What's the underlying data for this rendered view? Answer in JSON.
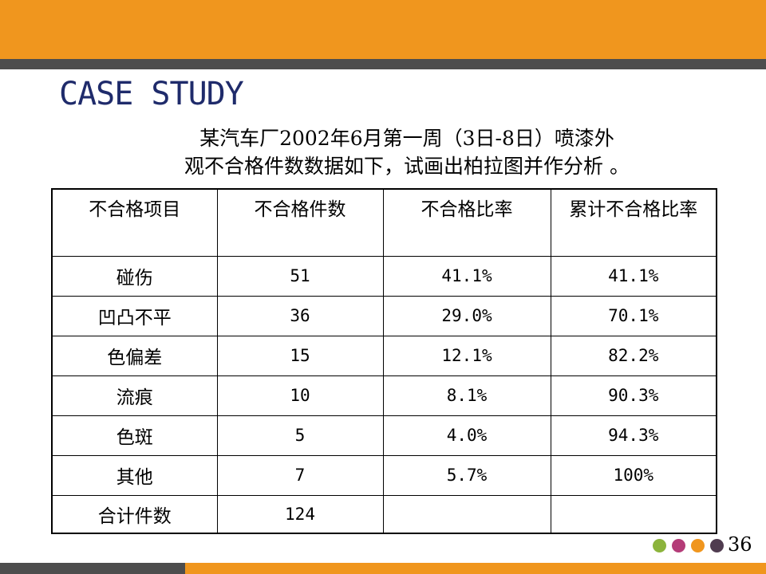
{
  "slide": {
    "title": "CASE STUDY",
    "intro_line1": "某汽车厂2002年6月第一周（3日-8日）喷漆外",
    "intro_line2": "观不合格件数数据如下，试画出柏拉图并作分析 。",
    "page_number": "36"
  },
  "table": {
    "headers": [
      "不合格项目",
      "不合格件数",
      "不合格比率",
      "累计不合格比率"
    ],
    "rows": [
      [
        "碰伤",
        "51",
        "41.1%",
        "41.1%"
      ],
      [
        "凹凸不平",
        "36",
        "29.0%",
        "70.1%"
      ],
      [
        "色偏差",
        "15",
        "12.1%",
        "82.2%"
      ],
      [
        "流痕",
        "10",
        "8.1%",
        "90.3%"
      ],
      [
        "色斑",
        "5",
        "4.0%",
        "94.3%"
      ],
      [
        "其他",
        "7",
        "5.7%",
        "100%"
      ],
      [
        "合计件数",
        "124",
        "",
        ""
      ]
    ]
  },
  "theme": {
    "accent": "#f0961e",
    "dark_bar": "#4d4d4d",
    "title_color": "#1f2b6b",
    "dot_colors": [
      "#8cb43c",
      "#b43c78",
      "#f0961e",
      "#503c50"
    ]
  }
}
